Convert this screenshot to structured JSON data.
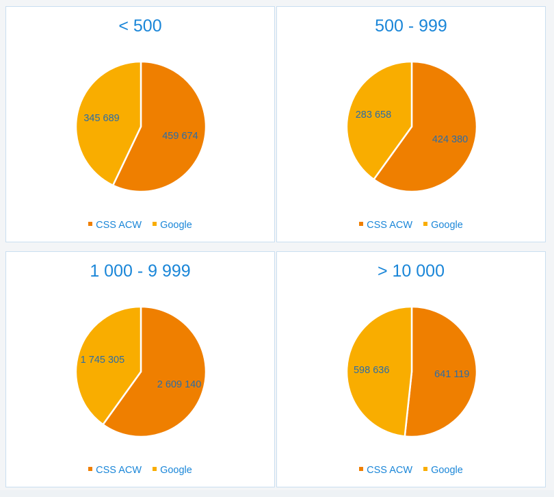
{
  "colors": {
    "css_acw": "#ef7f00",
    "google": "#f9ad00"
  },
  "chart_data": [
    {
      "type": "pie",
      "title": "< 500",
      "slices": [
        {
          "label": "CSS ACW",
          "value": 459674,
          "display": "459 674"
        },
        {
          "label": "Google",
          "value": 345689,
          "display": "345 689"
        }
      ],
      "legend": [
        "CSS ACW",
        "Google"
      ],
      "legend_position": "bottom"
    },
    {
      "type": "pie",
      "title": "500 - 999",
      "slices": [
        {
          "label": "CSS ACW",
          "value": 424380,
          "display": "424 380"
        },
        {
          "label": "Google",
          "value": 283658,
          "display": "283 658"
        }
      ],
      "legend": [
        "CSS ACW",
        "Google"
      ],
      "legend_position": "bottom"
    },
    {
      "type": "pie",
      "title": "1 000 - 9 999",
      "slices": [
        {
          "label": "CSS ACW",
          "value": 2609140,
          "display": "2 609 140"
        },
        {
          "label": "Google",
          "value": 1745305,
          "display": "1 745 305"
        }
      ],
      "legend": [
        "CSS ACW",
        "Google"
      ],
      "legend_position": "bottom"
    },
    {
      "type": "pie",
      "title": "> 10 000",
      "slices": [
        {
          "label": "CSS ACW",
          "value": 641119,
          "display": "641 119"
        },
        {
          "label": "Google",
          "value": 598636,
          "display": "598 636"
        }
      ],
      "legend": [
        "CSS ACW",
        "Google"
      ],
      "legend_position": "bottom"
    }
  ]
}
